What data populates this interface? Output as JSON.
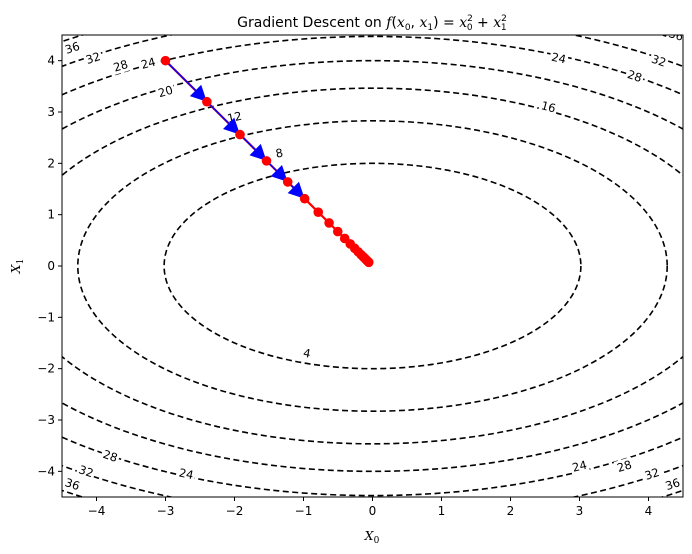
{
  "chart_data": {
    "type": "contour",
    "title": "Gradient Descent on f(x0, x1) = x0^2 + x1^2",
    "title_parts": {
      "prefix": "Gradient Descent on ",
      "f": "f",
      "x": "x",
      "sub0": "0",
      "sub1": "1",
      "sq": "2"
    },
    "xlabel": {
      "main": "X",
      "sub": "0"
    },
    "ylabel": {
      "main": "X",
      "sub": "1"
    },
    "xlim": [
      -4.5,
      4.5
    ],
    "ylim": [
      -4.5,
      4.5
    ],
    "xticks": [
      -4,
      -3,
      -2,
      -1,
      0,
      1,
      2,
      3,
      4
    ],
    "yticks": [
      -4,
      -3,
      -2,
      -1,
      0,
      1,
      2,
      3,
      4
    ],
    "grid": false,
    "contour": {
      "line_style": "dashed",
      "color": "#000000",
      "aspect_x_over_y": 1.51,
      "levels": [
        4,
        8,
        12,
        16,
        20,
        24,
        28,
        32,
        36
      ],
      "labels": [
        {
          "level": 4,
          "text": "4",
          "x": -0.95,
          "y": -1.7
        },
        {
          "level": 8,
          "text": "8",
          "x": -1.35,
          "y": 2.2
        },
        {
          "level": 12,
          "text": "12",
          "x": -2.0,
          "y": 2.9
        },
        {
          "level": 16,
          "text": "16",
          "x": 2.55,
          "y": 3.1
        },
        {
          "level": 20,
          "text": "20",
          "x": -3.0,
          "y": 3.4
        },
        {
          "level": 24,
          "text": "24",
          "x": 2.7,
          "y": 4.05
        },
        {
          "level": 24,
          "text": "24",
          "x": -3.25,
          "y": 3.95
        },
        {
          "level": 24,
          "text": "24",
          "x": 3.0,
          "y": -3.9
        },
        {
          "level": 24,
          "text": "24",
          "x": -2.7,
          "y": -4.05
        },
        {
          "level": 28,
          "text": "28",
          "x": -3.65,
          "y": 3.9
        },
        {
          "level": 28,
          "text": "28",
          "x": 3.8,
          "y": 3.7
        },
        {
          "level": 28,
          "text": "28",
          "x": 3.65,
          "y": -3.9
        },
        {
          "level": 28,
          "text": "28",
          "x": -3.8,
          "y": -3.7
        },
        {
          "level": 32,
          "text": "32",
          "x": -4.05,
          "y": 4.05
        },
        {
          "level": 32,
          "text": "32",
          "x": 4.15,
          "y": 4.0
        },
        {
          "level": 32,
          "text": "32",
          "x": 4.05,
          "y": -4.05
        },
        {
          "level": 32,
          "text": "32",
          "x": -4.15,
          "y": -4.0
        },
        {
          "level": 36,
          "text": "36",
          "x": -4.35,
          "y": 4.25
        },
        {
          "level": 36,
          "text": "36",
          "x": 4.35,
          "y": -4.25
        },
        {
          "level": 36,
          "text": "36",
          "x": -4.35,
          "y": -4.25
        },
        {
          "level": 36,
          "text": "36",
          "x": 4.4,
          "y": 4.5
        }
      ]
    },
    "path": {
      "point_color": "#ff0000",
      "line_color": "#ff0000",
      "arrow_color": "#0000ff",
      "points": [
        [
          -3.0,
          4.0
        ],
        [
          -2.4,
          3.2
        ],
        [
          -1.92,
          2.56
        ],
        [
          -1.536,
          2.048
        ],
        [
          -1.2288,
          1.6384
        ],
        [
          -0.983,
          1.3107
        ],
        [
          -0.7864,
          1.0486
        ],
        [
          -0.6291,
          0.8389
        ],
        [
          -0.5033,
          0.6711
        ],
        [
          -0.4027,
          0.5369
        ],
        [
          -0.3221,
          0.4295
        ],
        [
          -0.2577,
          0.3436
        ],
        [
          -0.2062,
          0.2749
        ],
        [
          -0.1649,
          0.2199
        ],
        [
          -0.1319,
          0.1759
        ],
        [
          -0.1056,
          0.1407
        ],
        [
          -0.0844,
          0.1126
        ],
        [
          -0.0676,
          0.0901
        ],
        [
          -0.054,
          0.0721
        ]
      ],
      "arrows_from_first": 5
    }
  }
}
